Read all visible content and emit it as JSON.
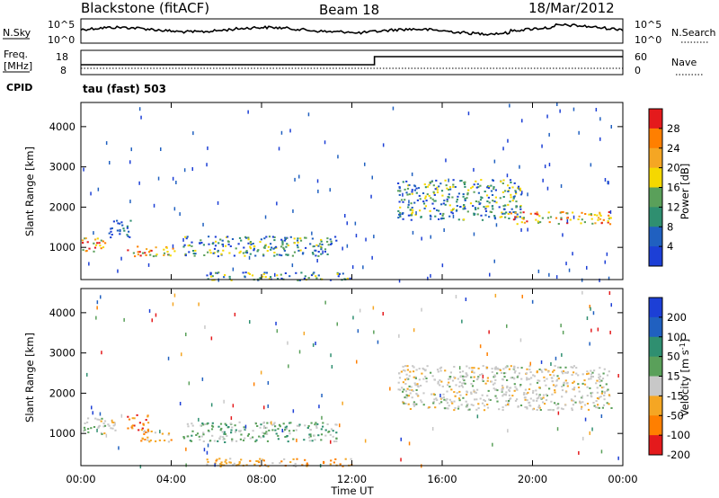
{
  "header": {
    "title": "Blackstone (fitACF)",
    "beam": "Beam 18",
    "date": "18/Mar/2012"
  },
  "noise_panel": {
    "left_label": "N.Sky",
    "right_label": "N.Search",
    "left_ticks": [
      "10^5",
      "10^0"
    ],
    "right_ticks": [
      "10^5",
      "10^0"
    ]
  },
  "freq_panel": {
    "left_label_1": "Freq.",
    "left_label_2": "[MHz]",
    "right_label": "Nave",
    "left_ticks": [
      "18",
      "8"
    ],
    "right_ticks": [
      "60",
      "0"
    ],
    "step_time_hours": 13.0
  },
  "cpid_panel": {
    "label": "CPID",
    "mode": "tau (fast) 503"
  },
  "chart_data": [
    {
      "type": "heatmap",
      "quantity": "Power",
      "ylabel": "Slant Range [km]",
      "yticks": [
        1000,
        2000,
        3000,
        4000
      ],
      "ylim": [
        200,
        4600
      ],
      "colorbar_label": "Power [dB]",
      "colorbar_ticks": [
        "28",
        "24",
        "20",
        "16",
        "12",
        "8",
        "4"
      ],
      "colors": [
        "#e41a1c",
        "#ff7f00",
        "#f5a623",
        "#f5d800",
        "#5aa05a",
        "#2f8f70",
        "#2060c0",
        "#1c3fd6"
      ],
      "echo_regions": [
        {
          "t": [
            0.0,
            1.2
          ],
          "range": [
            900,
            1250
          ],
          "level": "high"
        },
        {
          "t": [
            1.2,
            2.2
          ],
          "range": [
            1250,
            1700
          ],
          "level": "low"
        },
        {
          "t": [
            2.0,
            4.2
          ],
          "range": [
            800,
            1050
          ],
          "level": "high"
        },
        {
          "t": [
            4.5,
            11.3
          ],
          "range": [
            800,
            1300
          ],
          "level": "medium"
        },
        {
          "t": [
            5.5,
            12.0
          ],
          "range": [
            200,
            400
          ],
          "level": "medium"
        },
        {
          "t": [
            14.0,
            19.5
          ],
          "range": [
            1700,
            2700
          ],
          "level": "medium"
        },
        {
          "t": [
            19.0,
            23.5
          ],
          "range": [
            1600,
            1900
          ],
          "level": "high"
        }
      ]
    },
    {
      "type": "heatmap",
      "quantity": "Velocity",
      "xlabel": "Time UT",
      "ylabel": "Slant Range [km]",
      "xticks": [
        "00:00",
        "04:00",
        "08:00",
        "12:00",
        "16:00",
        "20:00",
        "00:00"
      ],
      "yticks": [
        1000,
        2000,
        3000,
        4000
      ],
      "ylim": [
        200,
        4600
      ],
      "colorbar_label": "Velocity [m s^-1]",
      "colorbar_ticks": [
        "200",
        "100",
        "50",
        "15",
        "-15",
        "-50",
        "-100",
        "-200"
      ],
      "colors": [
        "#1c3fd6",
        "#2060c0",
        "#2f8f70",
        "#5aa05a",
        "#c8c8c8",
        "#f5a623",
        "#ff7f00",
        "#e41a1c"
      ],
      "echo_regions": [
        {
          "t": [
            0.0,
            1.5
          ],
          "range": [
            1000,
            1400
          ],
          "level": "ground"
        },
        {
          "t": [
            2.0,
            3.0
          ],
          "range": [
            1100,
            1500
          ],
          "level": "away_fast"
        },
        {
          "t": [
            2.5,
            4.0
          ],
          "range": [
            800,
            1100
          ],
          "level": "away"
        },
        {
          "t": [
            4.5,
            11.3
          ],
          "range": [
            800,
            1300
          ],
          "level": "toward"
        },
        {
          "t": [
            5.5,
            12.0
          ],
          "range": [
            200,
            400
          ],
          "level": "away"
        },
        {
          "t": [
            14.0,
            23.5
          ],
          "range": [
            1600,
            2700
          ],
          "level": "ground"
        }
      ]
    }
  ]
}
